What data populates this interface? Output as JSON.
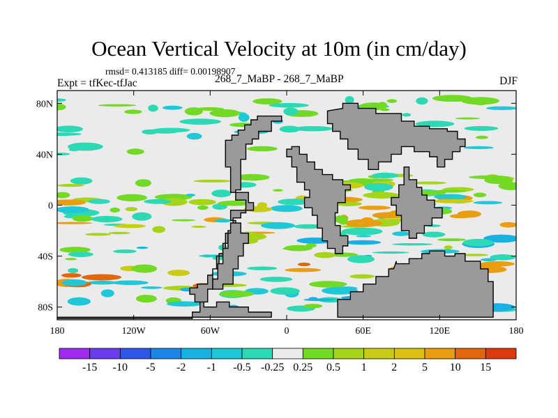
{
  "title": "Ocean Vertical Velocity at 10m (in cm/day)",
  "stats_line": "rmsd= 0.413185 diff= 0.00198907",
  "experiment_label": "Expt = tfKec-tfJac",
  "case_label": "268_7_MaBP - 268_7_MaBP",
  "season_label": "DJF",
  "map": {
    "lon_range": [
      -180,
      180
    ],
    "lat_range": [
      -90,
      90
    ],
    "land_color": "#9a9a9a",
    "neutral_color": "#ebebeb",
    "x_ticks": [
      {
        "value": -180,
        "label": "180"
      },
      {
        "value": -120,
        "label": "120W"
      },
      {
        "value": -60,
        "label": "60W"
      },
      {
        "value": 0,
        "label": "0"
      },
      {
        "value": 60,
        "label": "60E"
      },
      {
        "value": 120,
        "label": "120E"
      },
      {
        "value": 180,
        "label": "180"
      }
    ],
    "y_ticks": [
      {
        "value": 80,
        "label": "80N"
      },
      {
        "value": 40,
        "label": "40N"
      },
      {
        "value": 0,
        "label": "0"
      },
      {
        "value": -40,
        "label": "40S"
      },
      {
        "value": -80,
        "label": "80S"
      }
    ]
  },
  "colorbar": {
    "colors": [
      "#9f2bf0",
      "#6a3cf0",
      "#2f56e8",
      "#1d86e4",
      "#17b2e2",
      "#1fc8d6",
      "#2dd9b4",
      "#ebebeb",
      "#72d924",
      "#a6d41a",
      "#c8cc16",
      "#dcc112",
      "#e89e10",
      "#e2660e",
      "#dc3a0c"
    ],
    "boundaries": [
      "-15",
      "-10",
      "-5",
      "-2",
      "-1",
      "-0.5",
      "-0.25",
      "0.25",
      "0.5",
      "1",
      "2",
      "5",
      "10",
      "15"
    ]
  }
}
